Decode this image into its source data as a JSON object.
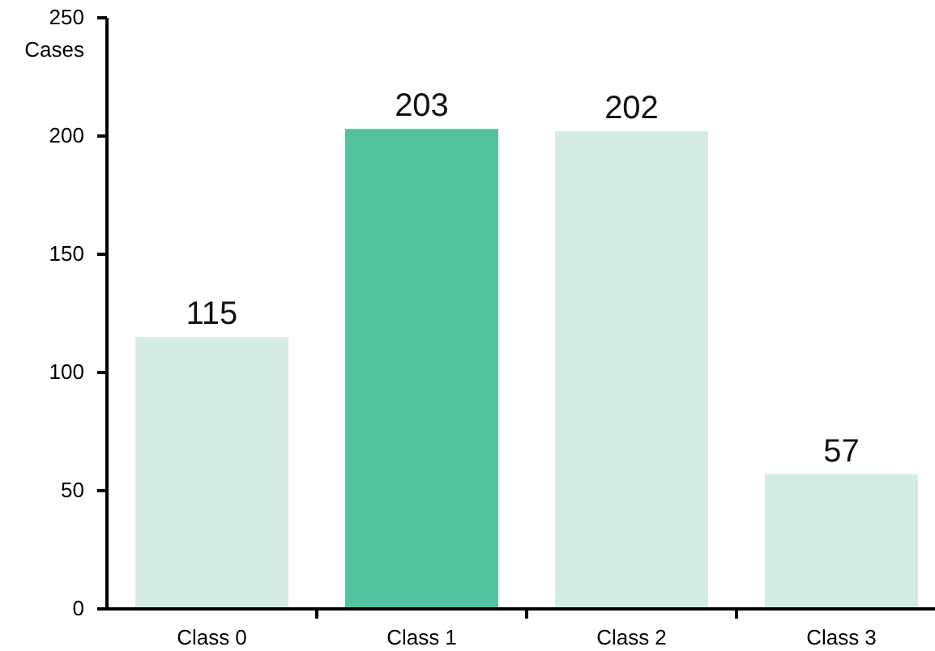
{
  "chart_data": {
    "type": "bar",
    "ylabel": "Cases",
    "categories": [
      "Class 0",
      "Class 1",
      "Class 2",
      "Class 3"
    ],
    "values": [
      115,
      203,
      202,
      57
    ],
    "colors": [
      "#d5ece3",
      "#52c29f",
      "#d5ece3",
      "#d5ece3"
    ],
    "ylim": [
      0,
      250
    ],
    "yticks": [
      0,
      50,
      100,
      150,
      200,
      250
    ],
    "data_labels": true,
    "grid": false
  }
}
